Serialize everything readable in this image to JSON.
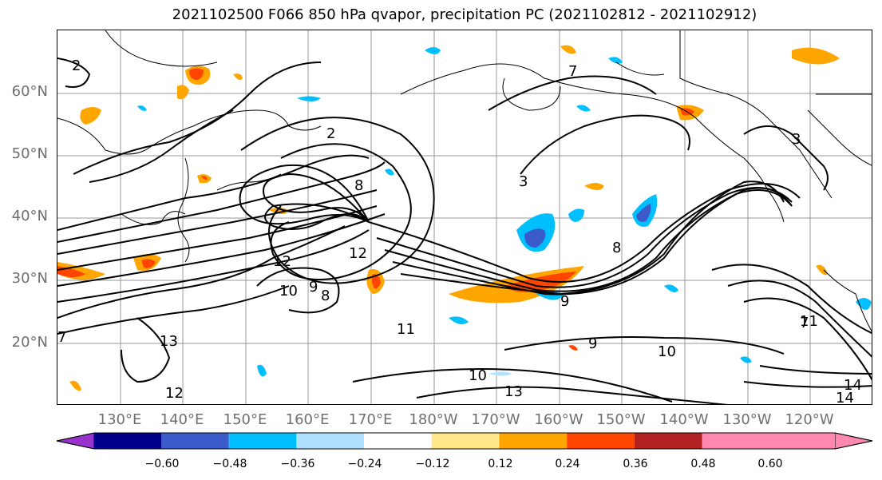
{
  "title": "2021102500 F066 850 hPa qvapor, precipitation PC (2021102812 - 2021102912)",
  "map": {
    "lat_labels": [
      "60°N",
      "50°N",
      "40°N",
      "30°N",
      "20°N"
    ],
    "lon_labels": [
      "130°E",
      "140°E",
      "150°E",
      "160°E",
      "170°E",
      "180°W",
      "170°W",
      "160°W",
      "150°W",
      "140°W",
      "130°W",
      "120°W"
    ],
    "contour_labels": [
      "2",
      "2",
      "3",
      "3",
      "7",
      "7",
      "8",
      "8",
      "8",
      "9",
      "9",
      "9",
      "10",
      "10",
      "10",
      "11",
      "11",
      "12",
      "12",
      "12",
      "13",
      "13",
      "14",
      "14",
      "7"
    ],
    "contour_color": "#000000",
    "gridline_color": "#999999"
  },
  "colorbar": {
    "tick_labels": [
      "−0.60",
      "−0.48",
      "−0.36",
      "−0.24",
      "−0.12",
      "0.12",
      "0.24",
      "0.36",
      "0.48",
      "0.60"
    ],
    "colors": [
      "#9932cc",
      "#00008b",
      "#3a5bc9",
      "#00bfff",
      "#b0e2ff",
      "#ffffff",
      "#ffe78a",
      "#ffa500",
      "#ff4500",
      "#b22222",
      "#ff88b0"
    ],
    "extend": "both"
  }
}
